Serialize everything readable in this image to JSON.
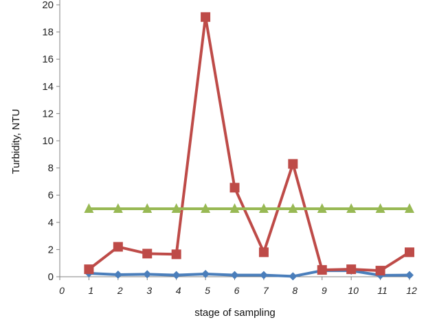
{
  "chart_data": {
    "type": "line",
    "xlabel": "stage of sampling",
    "ylabel": "Turbidity, NTU",
    "ylim": [
      0,
      20
    ],
    "yticks": [
      0,
      2,
      4,
      6,
      8,
      10,
      12,
      14,
      16,
      18,
      20
    ],
    "xlim": [
      0,
      12
    ],
    "xticks": [
      "0",
      "1",
      "2",
      "3",
      "4",
      "5",
      "6",
      "7",
      "8",
      "9",
      "10",
      "11",
      "12"
    ],
    "grid": false,
    "legend": "none",
    "x": [
      1,
      2,
      3,
      4,
      5,
      6,
      7,
      8,
      9,
      10,
      11,
      12
    ],
    "series": [
      {
        "color": "#4a7ebb",
        "marker": "diamond",
        "values": [
          0.25,
          0.15,
          0.18,
          0.12,
          0.2,
          0.12,
          0.12,
          0.03,
          0.45,
          0.45,
          0.1,
          0.12
        ]
      },
      {
        "color": "#be4b48",
        "marker": "square",
        "values": [
          0.55,
          2.2,
          1.7,
          1.65,
          19.1,
          6.55,
          1.8,
          8.3,
          0.5,
          0.55,
          0.45,
          1.8
        ]
      },
      {
        "color": "#98b954",
        "marker": "triangle",
        "values": [
          5,
          5,
          5,
          5,
          5,
          5,
          5,
          5,
          5,
          5,
          5,
          5
        ]
      }
    ]
  }
}
